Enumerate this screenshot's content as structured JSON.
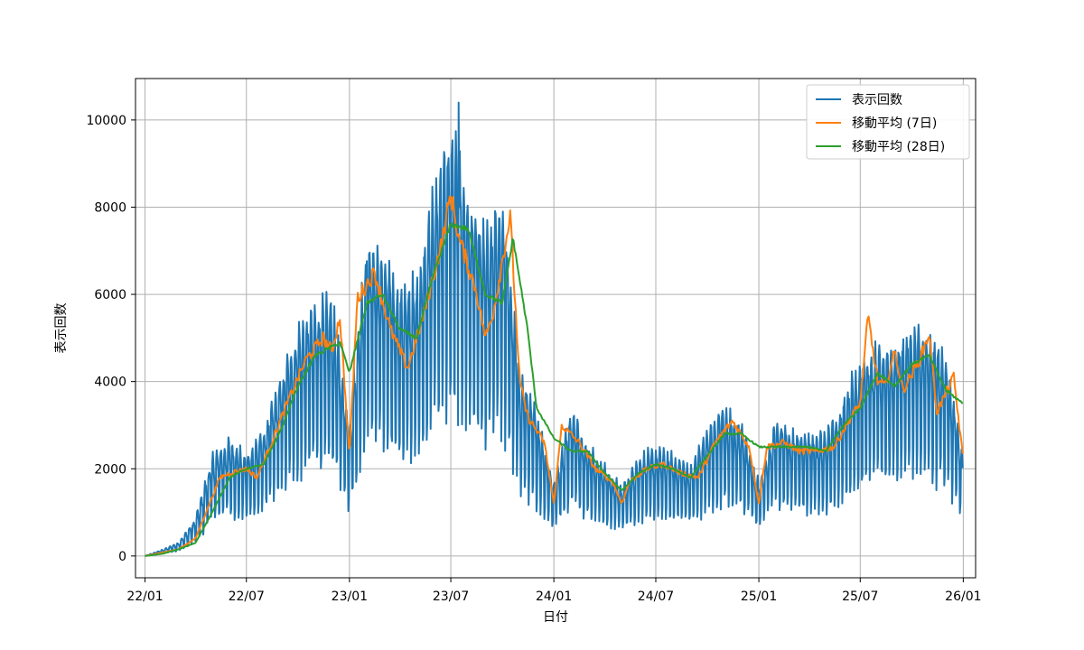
{
  "chart_data": {
    "type": "line",
    "xlabel": "日付",
    "ylabel": "表示回数",
    "x_tick_labels": [
      "22/01",
      "22/07",
      "23/01",
      "23/07",
      "24/01",
      "24/07",
      "25/01",
      "25/07",
      "26/01"
    ],
    "y_tick_labels": [
      "0",
      "2000",
      "4000",
      "6000",
      "8000",
      "10000"
    ],
    "xlim": [
      "2021-12-15",
      "2026-01-23"
    ],
    "ylim": [
      -500,
      10950
    ],
    "grid": true,
    "legend_position": "top-right",
    "series": [
      {
        "name": "表示回数",
        "color": "#1f77b4",
        "style": "daily values with strong weekly oscillation",
        "points": [
          [
            "2022-01-01",
            0
          ],
          [
            "2022-02-01",
            120
          ],
          [
            "2022-03-01",
            250
          ],
          [
            "2022-04-01",
            700
          ],
          [
            "2022-05-01",
            1900
          ],
          [
            "2022-06-01",
            2200
          ],
          [
            "2022-07-01",
            1900
          ],
          [
            "2022-08-01",
            2400
          ],
          [
            "2022-09-01",
            3400
          ],
          [
            "2022-10-01",
            4300
          ],
          [
            "2022-11-01",
            4700
          ],
          [
            "2022-12-01",
            4800
          ],
          [
            "2023-01-01",
            2500
          ],
          [
            "2023-02-01",
            6100
          ],
          [
            "2023-03-01",
            5700
          ],
          [
            "2023-04-01",
            5000
          ],
          [
            "2023-05-01",
            5200
          ],
          [
            "2023-06-01",
            7000
          ],
          [
            "2023-07-01",
            8000
          ],
          [
            "2023-08-01",
            6800
          ],
          [
            "2023-09-01",
            6000
          ],
          [
            "2023-10-01",
            6800
          ],
          [
            "2023-11-01",
            3500
          ],
          [
            "2023-12-01",
            2700
          ],
          [
            "2024-01-01",
            1400
          ],
          [
            "2024-02-01",
            2800
          ],
          [
            "2024-03-01",
            2100
          ],
          [
            "2024-04-01",
            1700
          ],
          [
            "2024-05-01",
            1300
          ],
          [
            "2024-06-01",
            1900
          ],
          [
            "2024-07-01",
            2000
          ],
          [
            "2024-08-01",
            1900
          ],
          [
            "2024-09-01",
            1700
          ],
          [
            "2024-10-01",
            2400
          ],
          [
            "2024-11-01",
            2800
          ],
          [
            "2024-12-01",
            2500
          ],
          [
            "2025-01-01",
            1400
          ],
          [
            "2025-02-01",
            2600
          ],
          [
            "2025-03-01",
            2400
          ],
          [
            "2025-04-01",
            2300
          ],
          [
            "2025-05-01",
            2300
          ],
          [
            "2025-06-01",
            3000
          ],
          [
            "2025-07-01",
            3700
          ],
          [
            "2025-08-01",
            3900
          ],
          [
            "2025-09-01",
            4000
          ],
          [
            "2025-10-01",
            4300
          ],
          [
            "2025-11-01",
            4100
          ],
          [
            "2025-12-01",
            3800
          ],
          [
            "2025-12-31",
            1900
          ]
        ],
        "peak_max": [
          "2023-07-15",
          10400
        ]
      },
      {
        "name": "移動平均 (7日)",
        "color": "#ff7f0e",
        "points": [
          [
            "2022-01-01",
            0
          ],
          [
            "2022-02-01",
            80
          ],
          [
            "2022-03-01",
            150
          ],
          [
            "2022-04-01",
            400
          ],
          [
            "2022-05-15",
            1800
          ],
          [
            "2022-06-01",
            1900
          ],
          [
            "2022-07-01",
            2000
          ],
          [
            "2022-07-20",
            1800
          ],
          [
            "2022-08-15",
            2600
          ],
          [
            "2022-09-15",
            3600
          ],
          [
            "2022-10-15",
            4500
          ],
          [
            "2022-11-15",
            5000
          ],
          [
            "2022-12-01",
            4700
          ],
          [
            "2022-12-15",
            5500
          ],
          [
            "2023-01-01",
            2300
          ],
          [
            "2023-01-15",
            5900
          ],
          [
            "2023-02-15",
            6500
          ],
          [
            "2023-03-15",
            5200
          ],
          [
            "2023-04-15",
            4300
          ],
          [
            "2023-05-15",
            5600
          ],
          [
            "2023-06-15",
            7200
          ],
          [
            "2023-07-01",
            8300
          ],
          [
            "2023-07-15",
            7300
          ],
          [
            "2023-08-15",
            6100
          ],
          [
            "2023-09-01",
            5000
          ],
          [
            "2023-09-15",
            5600
          ],
          [
            "2023-10-15",
            7800
          ],
          [
            "2023-11-01",
            4000
          ],
          [
            "2023-11-15",
            3200
          ],
          [
            "2023-12-15",
            2600
          ],
          [
            "2024-01-01",
            1200
          ],
          [
            "2024-01-15",
            3000
          ],
          [
            "2024-02-15",
            2600
          ],
          [
            "2024-03-15",
            2000
          ],
          [
            "2024-04-15",
            1700
          ],
          [
            "2024-05-01",
            1200
          ],
          [
            "2024-05-15",
            1700
          ],
          [
            "2024-06-15",
            2000
          ],
          [
            "2024-07-15",
            2100
          ],
          [
            "2024-08-15",
            1900
          ],
          [
            "2024-09-15",
            1800
          ],
          [
            "2024-10-15",
            2600
          ],
          [
            "2024-11-15",
            3100
          ],
          [
            "2024-12-15",
            2500
          ],
          [
            "2025-01-01",
            1200
          ],
          [
            "2025-01-15",
            2500
          ],
          [
            "2025-02-15",
            2600
          ],
          [
            "2025-03-15",
            2400
          ],
          [
            "2025-04-15",
            2400
          ],
          [
            "2025-05-15",
            2500
          ],
          [
            "2025-06-15",
            3200
          ],
          [
            "2025-07-01",
            3500
          ],
          [
            "2025-07-15",
            5500
          ],
          [
            "2025-08-01",
            4000
          ],
          [
            "2025-08-15",
            3900
          ],
          [
            "2025-09-01",
            4700
          ],
          [
            "2025-09-15",
            3800
          ],
          [
            "2025-10-15",
            4500
          ],
          [
            "2025-11-01",
            5100
          ],
          [
            "2025-11-15",
            3300
          ],
          [
            "2025-12-15",
            4100
          ],
          [
            "2025-12-31",
            2300
          ]
        ]
      },
      {
        "name": "移動平均 (28日)",
        "color": "#2ca02c",
        "points": [
          [
            "2022-01-01",
            0
          ],
          [
            "2022-02-01",
            50
          ],
          [
            "2022-03-01",
            150
          ],
          [
            "2022-04-01",
            300
          ],
          [
            "2022-05-01",
            1000
          ],
          [
            "2022-06-01",
            1800
          ],
          [
            "2022-07-01",
            2000
          ],
          [
            "2022-08-01",
            2100
          ],
          [
            "2022-09-01",
            2900
          ],
          [
            "2022-10-01",
            3900
          ],
          [
            "2022-11-01",
            4600
          ],
          [
            "2022-12-01",
            4800
          ],
          [
            "2022-12-15",
            4900
          ],
          [
            "2023-01-01",
            4200
          ],
          [
            "2023-02-01",
            5800
          ],
          [
            "2023-03-01",
            6000
          ],
          [
            "2023-04-01",
            5200
          ],
          [
            "2023-05-01",
            5000
          ],
          [
            "2023-06-01",
            6500
          ],
          [
            "2023-07-01",
            7600
          ],
          [
            "2023-08-01",
            7500
          ],
          [
            "2023-09-01",
            6000
          ],
          [
            "2023-10-01",
            5800
          ],
          [
            "2023-10-20",
            7300
          ],
          [
            "2023-11-15",
            5200
          ],
          [
            "2023-12-01",
            3400
          ],
          [
            "2024-01-01",
            2700
          ],
          [
            "2024-02-01",
            2400
          ],
          [
            "2024-03-01",
            2400
          ],
          [
            "2024-04-01",
            1900
          ],
          [
            "2024-05-01",
            1500
          ],
          [
            "2024-06-01",
            1900
          ],
          [
            "2024-07-01",
            2100
          ],
          [
            "2024-08-01",
            2000
          ],
          [
            "2024-09-01",
            1800
          ],
          [
            "2024-10-01",
            2300
          ],
          [
            "2024-11-01",
            2800
          ],
          [
            "2024-12-01",
            2800
          ],
          [
            "2025-01-01",
            2500
          ],
          [
            "2025-02-01",
            2500
          ],
          [
            "2025-03-01",
            2500
          ],
          [
            "2025-04-01",
            2500
          ],
          [
            "2025-05-01",
            2400
          ],
          [
            "2025-06-01",
            3000
          ],
          [
            "2025-07-01",
            3400
          ],
          [
            "2025-08-01",
            4200
          ],
          [
            "2025-09-01",
            3900
          ],
          [
            "2025-10-01",
            4400
          ],
          [
            "2025-11-01",
            4600
          ],
          [
            "2025-12-01",
            3800
          ],
          [
            "2025-12-31",
            3500
          ]
        ]
      }
    ]
  }
}
